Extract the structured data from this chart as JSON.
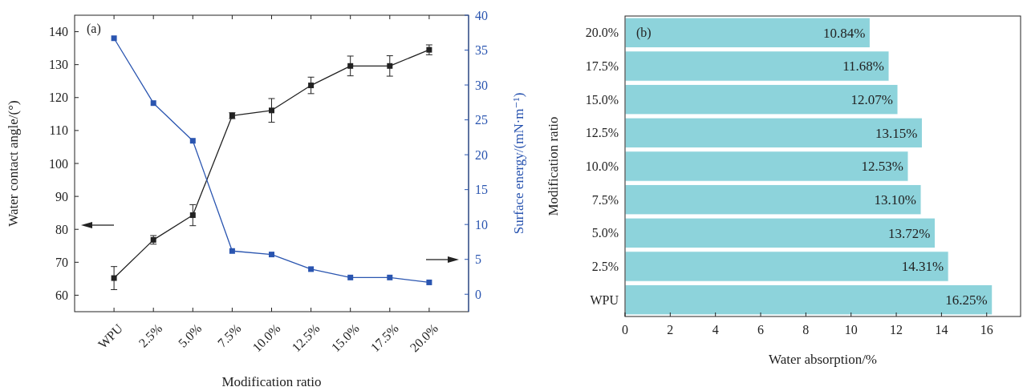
{
  "chart_data": [
    {
      "type": "line",
      "annotations": [
        "(a)"
      ],
      "xlabel": "Modification ratio",
      "ylabel": "Water contact angle/(°)",
      "y2label": "Surface energy/(mN·m⁻¹)",
      "categories": [
        "WPU",
        "2.5%",
        "5.0%",
        "7.5%",
        "10.0%",
        "12.5%",
        "15.0%",
        "17.5%",
        "20.0%"
      ],
      "series": [
        {
          "color": "#222222",
          "values": [
            65.2,
            76.8,
            84.3,
            114.5,
            116.1,
            123.7,
            129.6,
            129.6,
            134.5
          ],
          "errors": [
            3.5,
            1.3,
            3.2,
            0.9,
            3.6,
            2.5,
            3.0,
            3.1,
            1.5
          ]
        },
        {
          "color": "#2a55b0",
          "axis": "y2",
          "values": [
            36.7,
            27.4,
            22.0,
            6.2,
            5.7,
            3.6,
            2.4,
            2.4,
            1.7
          ]
        }
      ],
      "ylim": [
        55,
        145
      ],
      "yticks": [
        60,
        70,
        80,
        90,
        100,
        110,
        120,
        130,
        140
      ],
      "y2lim": [
        -2.5,
        40
      ],
      "y2ticks": [
        0,
        5,
        10,
        15,
        20,
        25,
        30,
        35,
        40
      ],
      "marker": "square",
      "grid": false
    },
    {
      "type": "bar",
      "orientation": "horizontal",
      "annotations": [
        "(b)"
      ],
      "xlabel": "Water absorption/%",
      "ylabel": "Modification ratio",
      "categories": [
        "20.0%",
        "17.5%",
        "15.0%",
        "12.5%",
        "10.0%",
        "7.5%",
        "5.0%",
        "2.5%",
        "WPU"
      ],
      "values": [
        10.84,
        11.68,
        12.07,
        13.15,
        12.53,
        13.1,
        13.72,
        14.31,
        16.25
      ],
      "value_labels": [
        "10.84%",
        "11.68%",
        "12.07%",
        "13.15%",
        "12.53%",
        "13.10%",
        "13.72%",
        "14.31%",
        "16.25%"
      ],
      "color": "#8dd3db",
      "xlim": [
        0,
        17.5
      ],
      "xticks": [
        0,
        2,
        4,
        6,
        8,
        10,
        12,
        14,
        16
      ],
      "grid": false
    }
  ]
}
